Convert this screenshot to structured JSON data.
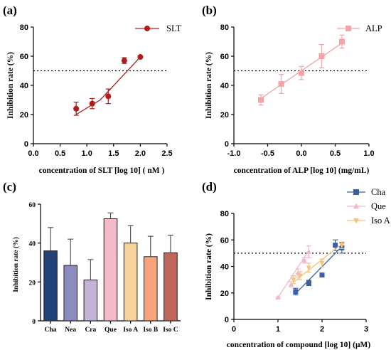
{
  "colors": {
    "slt": "#b01c1c",
    "alp": "#f4a3a6",
    "cha": "#3b5fa0",
    "que": "#f2b8c6",
    "iso_a": "#f4c27a",
    "bars": [
      "#23427a",
      "#8b8bc0",
      "#c3b1d6",
      "#f5b9c9",
      "#f6d39a",
      "#f7a47d",
      "#c0665c"
    ]
  },
  "chart_data": [
    {
      "id": "a",
      "panel_label": "(a)",
      "type": "scatter",
      "xlabel": "concentration of SLT [log 10] ( nM )",
      "ylabel": "Inhibition rate (%)",
      "xlim": [
        0.0,
        2.5
      ],
      "ylim": [
        0,
        80
      ],
      "xticks": [
        "0.0",
        "0.5",
        "1.0",
        "1.5",
        "2.0",
        "2.5"
      ],
      "yticks": [
        "0",
        "20",
        "40",
        "60",
        "80"
      ],
      "reference_line_y": 50,
      "legend_position": "top-right",
      "series": [
        {
          "name": "SLT",
          "x": [
            0.8,
            1.1,
            1.4,
            1.7,
            2.0
          ],
          "y": [
            24,
            27.5,
            32.5,
            57,
            59.5
          ],
          "error": [
            4.5,
            3.5,
            5,
            2,
            0.5
          ],
          "fit": [
            [
              0.8,
              20
            ],
            [
              1.25,
              30
            ],
            [
              2.0,
              59.5
            ]
          ]
        }
      ]
    },
    {
      "id": "b",
      "panel_label": "(b)",
      "type": "scatter",
      "xlabel": "concentration of ALP [log 10] (mg/mL)",
      "ylabel": "Inhibition rate (%)",
      "xlim": [
        -1.0,
        1.0
      ],
      "ylim": [
        0,
        80
      ],
      "xticks": [
        "-1.0",
        "-0.5",
        "0.0",
        "0.5",
        "1.0"
      ],
      "yticks": [
        "0",
        "20",
        "40",
        "60",
        "80"
      ],
      "reference_line_y": 50,
      "legend_position": "top-right",
      "series": [
        {
          "name": "ALP",
          "x": [
            -0.6,
            -0.3,
            0.0,
            0.3,
            0.6
          ],
          "y": [
            30,
            41,
            48.5,
            60,
            70
          ],
          "error": [
            3.5,
            6.5,
            4.5,
            8,
            4.5
          ],
          "fit": [
            [
              -0.6,
              31
            ],
            [
              0.6,
              69
            ]
          ]
        }
      ]
    },
    {
      "id": "c",
      "panel_label": "(c)",
      "type": "bar",
      "xlabel": "",
      "ylabel": "Inhibition rate (%)",
      "ylim": [
        0,
        60
      ],
      "yticks": [
        "0",
        "20",
        "40",
        "60"
      ],
      "categories": [
        "Cha",
        "Nea",
        "Cra",
        "Que",
        "Iso A",
        "Iso B",
        "Iso C"
      ],
      "values": [
        36,
        28.5,
        21,
        52.5,
        40,
        33,
        35
      ],
      "error": [
        12,
        13.5,
        10.5,
        3,
        9,
        10.5,
        9
      ]
    },
    {
      "id": "d",
      "panel_label": "(d)",
      "type": "scatter",
      "xlabel": "concentration of compound [log 10] (μM)",
      "ylabel": "Inhibition rate (%)",
      "xlim": [
        0,
        3
      ],
      "ylim": [
        0,
        80
      ],
      "xticks": [
        "0",
        "1",
        "2",
        "3"
      ],
      "yticks": [
        "0",
        "20",
        "40",
        "60",
        "80"
      ],
      "reference_line_y": 50,
      "legend_position": "top-right",
      "series": [
        {
          "name": "Cha",
          "marker": "square",
          "x": [
            1.4,
            1.7,
            2.0,
            2.3,
            2.45
          ],
          "y": [
            21,
            27.5,
            33.5,
            56,
            54
          ],
          "error": [
            2.5,
            2,
            1,
            4,
            4
          ],
          "fit": [
            [
              1.4,
              19.5
            ],
            [
              2.45,
              55
            ]
          ]
        },
        {
          "name": "Que",
          "marker": "triangle-up",
          "x": [
            1.0,
            1.3,
            1.45,
            1.6,
            1.7
          ],
          "y": [
            16.5,
            26.5,
            35,
            44.5,
            51
          ],
          "error": [
            0.5,
            2,
            3,
            2,
            4.5
          ],
          "fit": [
            [
              1.0,
              16.5
            ],
            [
              1.7,
              52
            ]
          ]
        },
        {
          "name": "Iso A",
          "marker": "triangle-down",
          "x": [
            1.35,
            1.5,
            1.7,
            2.0,
            2.45
          ],
          "y": [
            30,
            33,
            39,
            42.5,
            56
          ],
          "error": [
            3,
            3,
            3.5,
            3,
            2.5
          ],
          "fit": [
            [
              1.35,
              28
            ],
            [
              2.45,
              57
            ]
          ]
        }
      ]
    }
  ]
}
